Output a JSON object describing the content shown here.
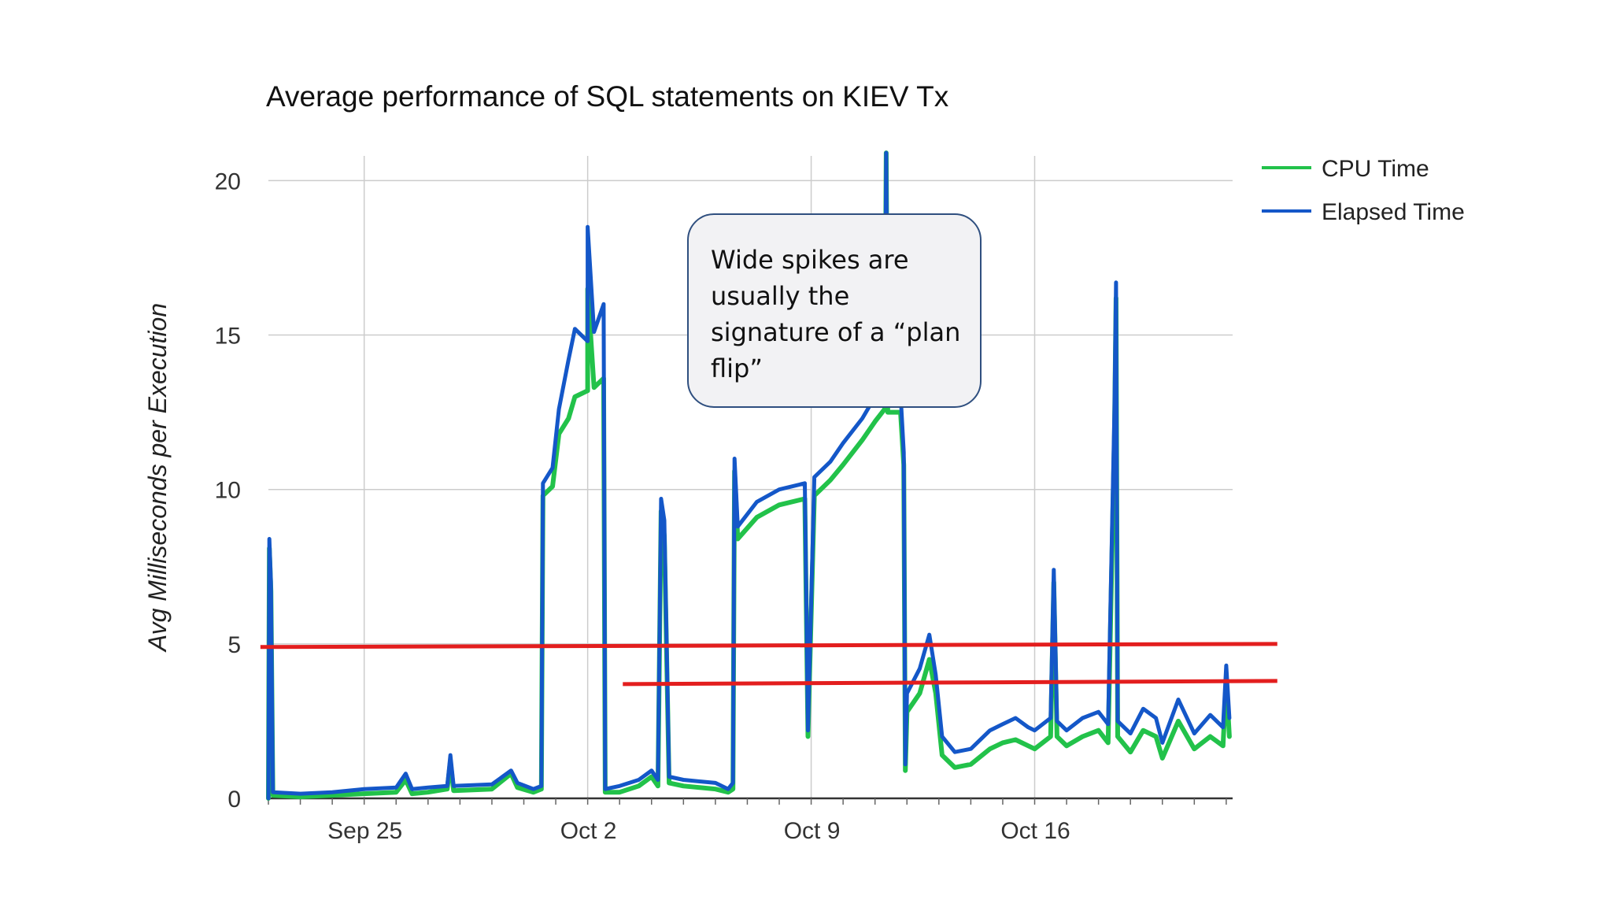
{
  "chart_data": {
    "type": "line",
    "title": "Average performance of SQL statements on KIEV Tx",
    "xlabel": "",
    "ylabel": "Avg Milliseconds per Execution",
    "x_unit": "days since Sep 22",
    "xlim": [
      0,
      30.2
    ],
    "ylim": [
      0,
      20.8
    ],
    "y_ticks": [
      0,
      5,
      10,
      15,
      20
    ],
    "x_ticks": [
      {
        "x": 3,
        "label": "Sep 25"
      },
      {
        "x": 10,
        "label": "Oct 2"
      },
      {
        "x": 17,
        "label": "Oct 9"
      },
      {
        "x": 24,
        "label": "Oct 16"
      }
    ],
    "grid": true,
    "legend_position": "top-right",
    "series": [
      {
        "name": "CPU Time",
        "color": "#22c24a",
        "points": [
          [
            0,
            0
          ],
          [
            0.03,
            8.1
          ],
          [
            0.08,
            6.7
          ],
          [
            0.14,
            0.1
          ],
          [
            1,
            0.05
          ],
          [
            2,
            0.1
          ],
          [
            3,
            0.15
          ],
          [
            4,
            0.2
          ],
          [
            4.3,
            0.6
          ],
          [
            4.5,
            0.15
          ],
          [
            5,
            0.2
          ],
          [
            5.6,
            0.3
          ],
          [
            5.7,
            1.2
          ],
          [
            5.8,
            0.25
          ],
          [
            7,
            0.3
          ],
          [
            7.6,
            0.8
          ],
          [
            7.8,
            0.35
          ],
          [
            8.3,
            0.2
          ],
          [
            8.55,
            0.3
          ],
          [
            8.6,
            9.8
          ],
          [
            8.9,
            10.1
          ],
          [
            9.1,
            11.8
          ],
          [
            9.4,
            12.3
          ],
          [
            9.6,
            13.0
          ],
          [
            10,
            13.2
          ],
          [
            10,
            16.5
          ],
          [
            10.2,
            13.3
          ],
          [
            10.5,
            13.6
          ],
          [
            10.55,
            0.2
          ],
          [
            11,
            0.2
          ],
          [
            11.6,
            0.4
          ],
          [
            12,
            0.7
          ],
          [
            12.2,
            0.4
          ],
          [
            12.3,
            9.3
          ],
          [
            12.4,
            8.5
          ],
          [
            12.55,
            0.5
          ],
          [
            13,
            0.4
          ],
          [
            14,
            0.3
          ],
          [
            14.4,
            0.2
          ],
          [
            14.55,
            0.3
          ],
          [
            14.6,
            10.6
          ],
          [
            14.7,
            8.4
          ],
          [
            15.3,
            9.1
          ],
          [
            16,
            9.5
          ],
          [
            16.8,
            9.7
          ],
          [
            16.9,
            2.0
          ],
          [
            17.1,
            9.8
          ],
          [
            17.6,
            10.3
          ],
          [
            18,
            10.8
          ],
          [
            18.6,
            11.6
          ],
          [
            19,
            12.2
          ],
          [
            19.3,
            12.6
          ],
          [
            19.35,
            20.9
          ],
          [
            19.4,
            12.5
          ],
          [
            19.8,
            12.5
          ],
          [
            19.9,
            10.8
          ],
          [
            19.95,
            0.9
          ],
          [
            20,
            2.8
          ],
          [
            20.4,
            3.4
          ],
          [
            20.7,
            4.5
          ],
          [
            20.9,
            3.4
          ],
          [
            21.1,
            1.4
          ],
          [
            21.5,
            1.0
          ],
          [
            22,
            1.1
          ],
          [
            22.6,
            1.6
          ],
          [
            23,
            1.8
          ],
          [
            23.4,
            1.9
          ],
          [
            23.8,
            1.7
          ],
          [
            24,
            1.6
          ],
          [
            24.5,
            2.0
          ],
          [
            24.6,
            7.0
          ],
          [
            24.7,
            2.0
          ],
          [
            25,
            1.7
          ],
          [
            25.5,
            2.0
          ],
          [
            26,
            2.2
          ],
          [
            26.3,
            1.8
          ],
          [
            26.5,
            11.8
          ],
          [
            26.55,
            16.2
          ],
          [
            26.6,
            2.0
          ],
          [
            27,
            1.5
          ],
          [
            27.4,
            2.2
          ],
          [
            27.8,
            2.0
          ],
          [
            28,
            1.3
          ],
          [
            28.5,
            2.5
          ],
          [
            29,
            1.6
          ],
          [
            29.5,
            2.0
          ],
          [
            29.9,
            1.7
          ],
          [
            30,
            3.8
          ],
          [
            30.1,
            2.0
          ]
        ]
      },
      {
        "name": "Elapsed Time",
        "color": "#1457c8",
        "points": [
          [
            0,
            0
          ],
          [
            0.03,
            8.4
          ],
          [
            0.08,
            7.0
          ],
          [
            0.14,
            0.2
          ],
          [
            1,
            0.15
          ],
          [
            2,
            0.2
          ],
          [
            3,
            0.3
          ],
          [
            4,
            0.35
          ],
          [
            4.3,
            0.8
          ],
          [
            4.5,
            0.3
          ],
          [
            5,
            0.35
          ],
          [
            5.6,
            0.4
          ],
          [
            5.7,
            1.4
          ],
          [
            5.8,
            0.4
          ],
          [
            7,
            0.45
          ],
          [
            7.6,
            0.9
          ],
          [
            7.8,
            0.5
          ],
          [
            8.3,
            0.3
          ],
          [
            8.55,
            0.4
          ],
          [
            8.6,
            10.2
          ],
          [
            8.9,
            10.7
          ],
          [
            9.1,
            12.6
          ],
          [
            9.4,
            14.2
          ],
          [
            9.6,
            15.2
          ],
          [
            10,
            14.8
          ],
          [
            10,
            18.5
          ],
          [
            10.2,
            15.1
          ],
          [
            10.5,
            16.0
          ],
          [
            10.55,
            0.3
          ],
          [
            11,
            0.4
          ],
          [
            11.6,
            0.6
          ],
          [
            12,
            0.9
          ],
          [
            12.2,
            0.6
          ],
          [
            12.3,
            9.7
          ],
          [
            12.4,
            9.0
          ],
          [
            12.55,
            0.7
          ],
          [
            13,
            0.6
          ],
          [
            14,
            0.5
          ],
          [
            14.4,
            0.3
          ],
          [
            14.55,
            0.5
          ],
          [
            14.6,
            11.0
          ],
          [
            14.7,
            8.8
          ],
          [
            15.3,
            9.6
          ],
          [
            16,
            10.0
          ],
          [
            16.8,
            10.2
          ],
          [
            16.9,
            2.2
          ],
          [
            17.1,
            10.4
          ],
          [
            17.6,
            10.9
          ],
          [
            18,
            11.5
          ],
          [
            18.6,
            12.3
          ],
          [
            19,
            13.0
          ],
          [
            19.3,
            13.4
          ],
          [
            19.35,
            20.9
          ],
          [
            19.4,
            13.3
          ],
          [
            19.8,
            13.1
          ],
          [
            19.9,
            11.2
          ],
          [
            19.95,
            1.1
          ],
          [
            20,
            3.4
          ],
          [
            20.4,
            4.2
          ],
          [
            20.7,
            5.3
          ],
          [
            20.9,
            4.0
          ],
          [
            21.1,
            2.0
          ],
          [
            21.5,
            1.5
          ],
          [
            22,
            1.6
          ],
          [
            22.6,
            2.2
          ],
          [
            23,
            2.4
          ],
          [
            23.4,
            2.6
          ],
          [
            23.8,
            2.3
          ],
          [
            24,
            2.2
          ],
          [
            24.5,
            2.6
          ],
          [
            24.6,
            7.4
          ],
          [
            24.7,
            2.5
          ],
          [
            25,
            2.2
          ],
          [
            25.5,
            2.6
          ],
          [
            26,
            2.8
          ],
          [
            26.3,
            2.4
          ],
          [
            26.5,
            12.6
          ],
          [
            26.55,
            16.7
          ],
          [
            26.6,
            2.5
          ],
          [
            27,
            2.1
          ],
          [
            27.4,
            2.9
          ],
          [
            27.8,
            2.6
          ],
          [
            28,
            1.8
          ],
          [
            28.5,
            3.2
          ],
          [
            29,
            2.1
          ],
          [
            29.5,
            2.7
          ],
          [
            29.9,
            2.3
          ],
          [
            30,
            4.3
          ],
          [
            30.1,
            2.6
          ]
        ]
      }
    ],
    "reference_lines": [
      {
        "color": "#e31e1e",
        "from": [
          -0.25,
          4.9
        ],
        "to": [
          31.6,
          5.0
        ]
      },
      {
        "color": "#e31e1e",
        "from": [
          11.1,
          3.7
        ],
        "to": [
          31.6,
          3.8
        ]
      }
    ]
  },
  "annotation": {
    "text": "Wide spikes are usually the signature of a “plan flip”"
  }
}
